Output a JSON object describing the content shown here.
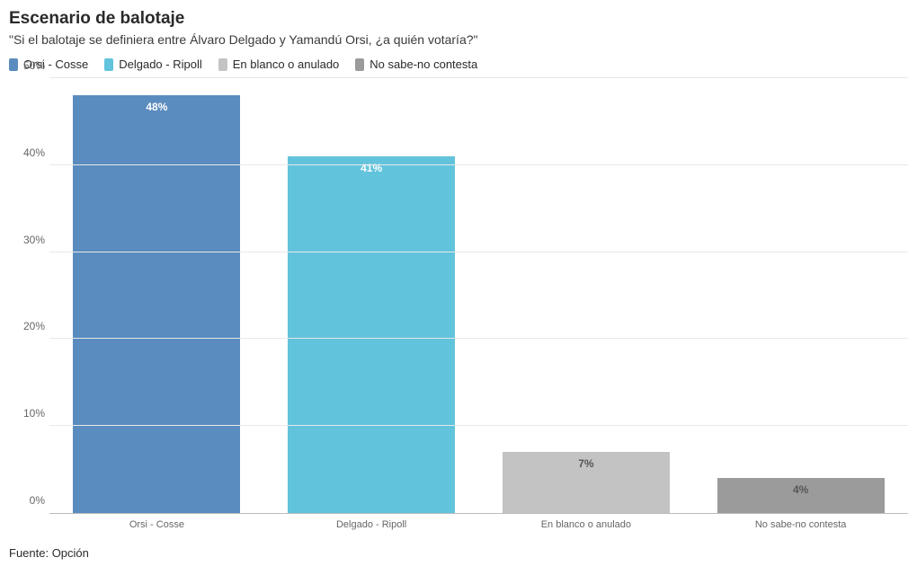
{
  "chart": {
    "type": "bar",
    "title": "Escenario de balotaje",
    "title_fontsize": 19,
    "title_color": "#2a2a2a",
    "subtitle": "\"Si el balotaje se definiera entre Álvaro Delgado y Yamandú Orsi, ¿a quién votaría?\"",
    "subtitle_fontsize": 14,
    "subtitle_color": "#3a3a3a",
    "source": "Fuente: Opción",
    "source_fontsize": 13,
    "background_color": "#ffffff",
    "grid_color": "#e8e8e8",
    "axis_color": "#666666",
    "ylim": [
      0,
      50
    ],
    "ytick_step": 10,
    "y_suffix": "%",
    "y_label_fontsize": 12,
    "x_label_fontsize": 11,
    "legend_fontsize": 13,
    "bar_label_fontsize": 12,
    "bar_width_pct": 78,
    "categories": [
      {
        "label": "Orsi - Cosse",
        "value": 48,
        "color": "#5a8cbf",
        "label_text": "48%",
        "dark_label": false
      },
      {
        "label": "Delgado - Ripoll",
        "value": 41,
        "color": "#62c3dc",
        "label_text": "41%",
        "dark_label": false
      },
      {
        "label": "En blanco o anulado",
        "value": 7,
        "color": "#c3c3c3",
        "label_text": "7%",
        "dark_label": true
      },
      {
        "label": "No sabe-no contesta",
        "value": 4,
        "color": "#9b9b9b",
        "label_text": "4%",
        "dark_label": true
      }
    ],
    "legend": [
      {
        "label": "Orsi - Cosse",
        "color": "#5a8cbf"
      },
      {
        "label": "Delgado - Ripoll",
        "color": "#62c3dc"
      },
      {
        "label": "En blanco o anulado",
        "color": "#c3c3c3"
      },
      {
        "label": "No sabe-no contesta",
        "color": "#9b9b9b"
      }
    ]
  }
}
